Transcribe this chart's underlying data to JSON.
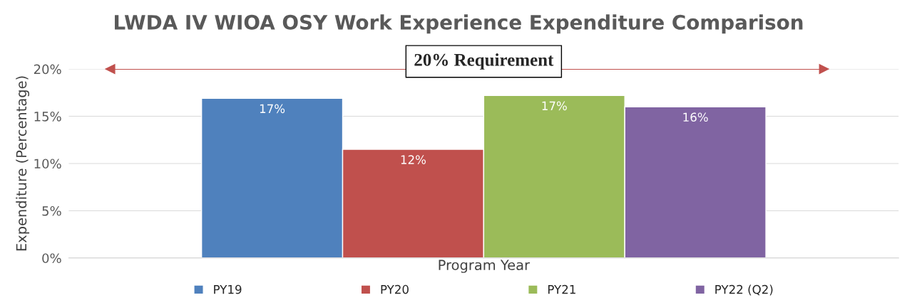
{
  "chart_data": {
    "type": "bar",
    "title": "LWDA IV WIOA OSY Work Experience Expenditure Comparison",
    "xlabel": "Program Year",
    "ylabel": "Expenditure (Percentage)",
    "categories": [
      null
    ],
    "series": [
      {
        "name": "PY19",
        "color": "#4f81bd",
        "values": [
          16.9
        ],
        "value_labels": [
          "17%"
        ]
      },
      {
        "name": "PY20",
        "color": "#c0504d",
        "values": [
          11.5
        ],
        "value_labels": [
          "12%"
        ]
      },
      {
        "name": "PY21",
        "color": "#9bbb59",
        "values": [
          17.2
        ],
        "value_labels": [
          "17%"
        ]
      },
      {
        "name": "PY22 (Q2)",
        "color": "#8064a2",
        "values": [
          16.0
        ],
        "value_labels": [
          "16%"
        ]
      }
    ],
    "ylim": [
      0,
      20
    ],
    "yticks": [
      {
        "value": 0,
        "label": "0%"
      },
      {
        "value": 5,
        "label": "5%"
      },
      {
        "value": 10,
        "label": "10%"
      },
      {
        "value": 15,
        "label": "15%"
      },
      {
        "value": 20,
        "label": "20%"
      }
    ],
    "ref_lines": [
      {
        "axis": "y",
        "value": 20,
        "label": "20% Requirement",
        "color": "#c0504d"
      }
    ],
    "grid": "y",
    "legend": "bottom"
  }
}
